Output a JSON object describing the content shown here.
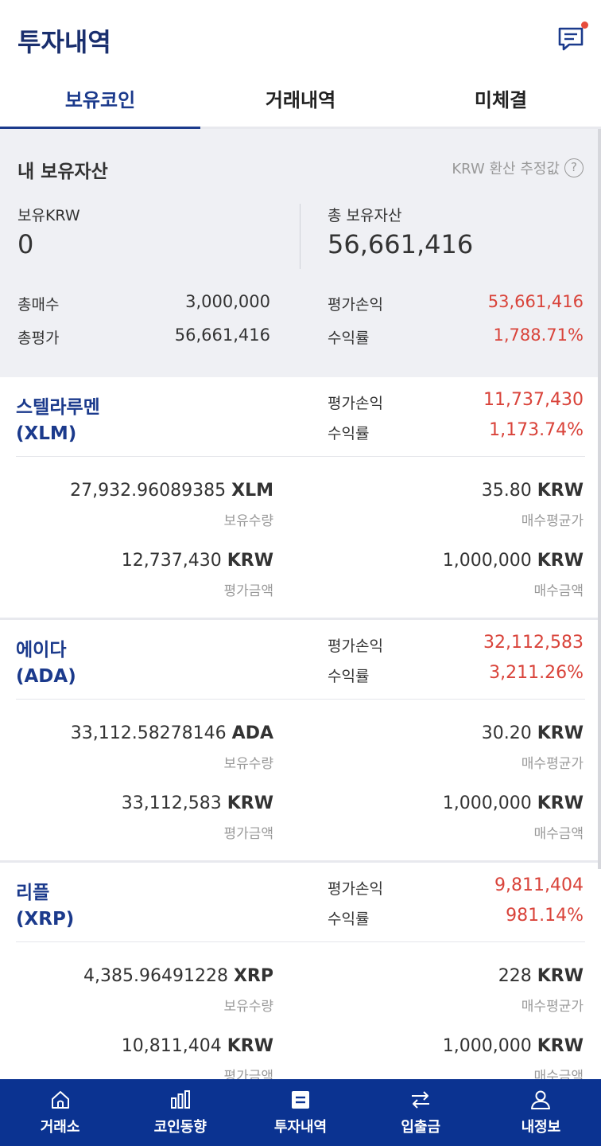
{
  "header": {
    "title": "투자내역",
    "chat_icon": "chat-icon"
  },
  "tabs": [
    {
      "label": "보유코인",
      "active": true
    },
    {
      "label": "거래내역",
      "active": false
    },
    {
      "label": "미체결",
      "active": false
    }
  ],
  "summary": {
    "title": "내 보유자산",
    "note": "KRW 환산 추정값",
    "help_icon": "?",
    "krw_label": "보유KRW",
    "krw_value": "0",
    "total_label": "총 보유자산",
    "total_value": "56,661,416",
    "buy_label": "총매수",
    "buy_value": "3,000,000",
    "eval_label": "총평가",
    "eval_value": "56,661,416",
    "pnl_label": "평가손익",
    "pnl_value": "53,661,416",
    "rate_label": "수익률",
    "rate_value": "1,788.71%"
  },
  "coins": [
    {
      "name": "스텔라루멘",
      "symbol": "(XLM)",
      "pnl_label": "평가손익",
      "pnl": "11,737,430",
      "rate_label": "수익률",
      "rate": "1,173.74%",
      "qty": "27,932.96089385",
      "qty_unit": "XLM",
      "qty_label": "보유수량",
      "avg": "35.80",
      "avg_unit": "KRW",
      "avg_label": "매수평균가",
      "eval": "12,737,430",
      "eval_unit": "KRW",
      "eval_label": "평가금액",
      "buy": "1,000,000",
      "buy_unit": "KRW",
      "buy_label": "매수금액"
    },
    {
      "name": "에이다",
      "symbol": "(ADA)",
      "pnl_label": "평가손익",
      "pnl": "32,112,583",
      "rate_label": "수익률",
      "rate": "3,211.26%",
      "qty": "33,112.58278146",
      "qty_unit": "ADA",
      "qty_label": "보유수량",
      "avg": "30.20",
      "avg_unit": "KRW",
      "avg_label": "매수평균가",
      "eval": "33,112,583",
      "eval_unit": "KRW",
      "eval_label": "평가금액",
      "buy": "1,000,000",
      "buy_unit": "KRW",
      "buy_label": "매수금액"
    },
    {
      "name": "리플",
      "symbol": "(XRP)",
      "pnl_label": "평가손익",
      "pnl": "9,811,404",
      "rate_label": "수익률",
      "rate": "981.14%",
      "qty": "4,385.96491228",
      "qty_unit": "XRP",
      "qty_label": "보유수량",
      "avg": "228",
      "avg_unit": "KRW",
      "avg_label": "매수평균가",
      "eval": "10,811,404",
      "eval_unit": "KRW",
      "eval_label": "평가금액",
      "buy": "1,000,000",
      "buy_unit": "KRW",
      "buy_label": "매수금액"
    }
  ],
  "nav": [
    {
      "label": "거래소",
      "icon": "home-icon"
    },
    {
      "label": "코인동향",
      "icon": "bar-chart-icon"
    },
    {
      "label": "투자내역",
      "icon": "list-icon",
      "active": true
    },
    {
      "label": "입출금",
      "icon": "transfer-icon"
    },
    {
      "label": "내정보",
      "icon": "user-icon"
    }
  ],
  "colors": {
    "brand": "#1b3a8c",
    "nav_bg": "#0b3391",
    "profit": "#d9433a",
    "summary_bg": "#eff0f4"
  }
}
